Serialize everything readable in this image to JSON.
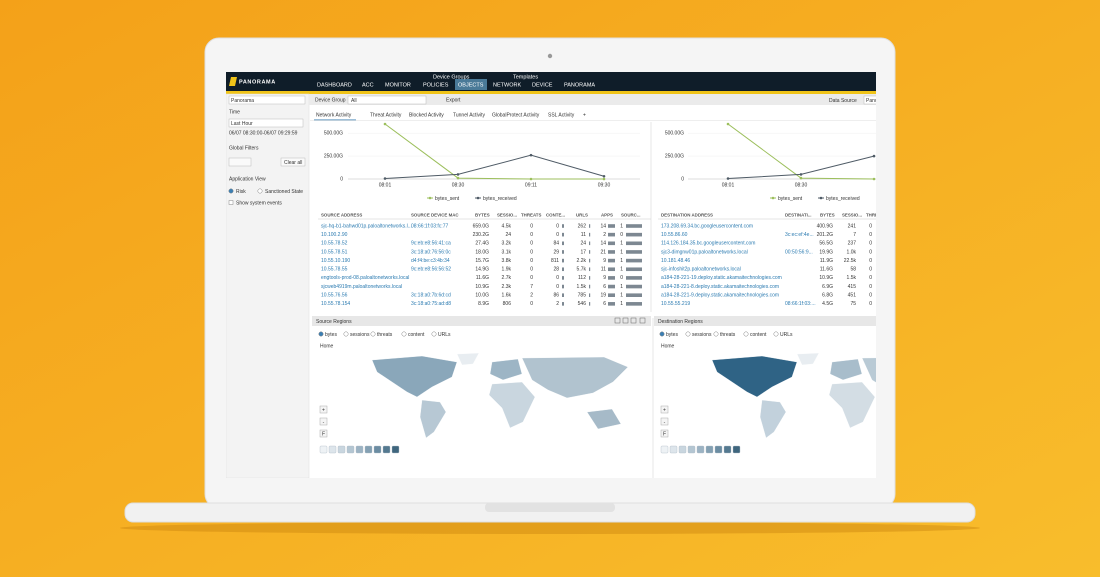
{
  "nav": {
    "logo": "PANORAMA",
    "group_labels": [
      "Device Groups",
      "Templates"
    ],
    "tabs": [
      "DASHBOARD",
      "ACC",
      "MONITOR",
      "POLICIES",
      "OBJECTS",
      "NETWORK",
      "DEVICE",
      "PANORAMA"
    ]
  },
  "sidebar": {
    "context": "Panorama",
    "time_label": "Time",
    "time_value": "Last Hour",
    "time_range": "06/07 08:30:00-06/07 09:29:59",
    "filters_label": "Global Filters",
    "clear": "Clear all",
    "app_view_label": "Application View",
    "options": [
      "Risk",
      "Sanctioned State"
    ],
    "checkbox": "Show system events"
  },
  "toolbar": {
    "device_group_label": "Device Group",
    "device_group": "All",
    "export": "Export",
    "data_source_label": "Data Source",
    "data_source": "Pano"
  },
  "tabs": [
    "Network Activity",
    "Threat Activity",
    "Blocked Activity",
    "Tunnel Activity",
    "GlobalProtect Activity",
    "SSL Activity",
    "+"
  ],
  "charts": [
    {
      "type": "line",
      "categories": [
        "08:01",
        "08:30",
        "09:11",
        "09:30"
      ],
      "series": [
        {
          "name": "bytes_sent",
          "color": "#9cbf5c",
          "values": [
            600,
            10,
            0,
            0
          ]
        },
        {
          "name": "bytes_received",
          "color": "#4f5b66",
          "values": [
            5,
            50,
            260,
            30
          ]
        }
      ],
      "ylim": [
        0,
        600
      ],
      "yticks": [
        0,
        {
          "value": 250,
          "label": "250.00G"
        },
        {
          "value": 500,
          "label": "500.00G"
        }
      ]
    },
    {
      "type": "line",
      "categories": [
        "08:01",
        "08:30",
        null
      ],
      "series": [
        {
          "name": "bytes_sent",
          "color": "#9cbf5c",
          "values": [
            600,
            10,
            0
          ]
        },
        {
          "name": "bytes_received",
          "color": "#4f5b66",
          "values": [
            5,
            50,
            250
          ]
        }
      ],
      "ylim": [
        0,
        600
      ],
      "yticks": [
        0,
        {
          "value": 250,
          "label": "250.00G"
        },
        {
          "value": 500,
          "label": "500.00G"
        }
      ]
    }
  ],
  "source_table": {
    "columns": [
      "SOURCE ADDRESS",
      "SOURCE DEVICE MAC",
      "BYTES",
      "SESSIO...",
      "THREATS",
      "CONTE...",
      "URLS",
      "APPS",
      "SOURC..."
    ],
    "rows": [
      [
        "sjc-hq-b1-bahwd01p.paloaltonetworks.l...",
        "08:66:1f:03:fc:77",
        "659.0G",
        "4.5k",
        "0",
        "0",
        "262",
        "14",
        "1"
      ],
      [
        "10.100.2.90",
        null,
        "230.2G",
        "24",
        "0",
        "0",
        "11",
        "2",
        "0"
      ],
      [
        "10.55.78.52",
        "9c:eb:e8:56:41:ca",
        "27.4G",
        "3.2k",
        "0",
        "84",
        "24",
        "14",
        "1"
      ],
      [
        "10.55.78.51",
        "3c:18:a0:76:56:0c",
        "18.0G",
        "3.1k",
        "0",
        "29",
        "17",
        "21",
        "1"
      ],
      [
        "10.55.10.190",
        "d4:f4:be:c3:4b:34",
        "15.7G",
        "3.8k",
        "0",
        "811",
        "2.2k",
        "9",
        "1"
      ],
      [
        "10.55.78.55",
        "9c:eb:e8:56:56:52",
        "14.9G",
        "1.9k",
        "0",
        "28",
        "5.7k",
        "11",
        "1"
      ],
      [
        "engtools-prod-08.paloaltonetworks.local",
        null,
        "11.6G",
        "2.7k",
        "0",
        "0",
        "112",
        "9",
        "0"
      ],
      [
        "sjcweb4919m.paloaltonetworks.local",
        null,
        "10.9G",
        "2.3k",
        "7",
        "0",
        "1.5k",
        "6",
        "1"
      ],
      [
        "10.55.76.56",
        "3c:18:a0:7b:6d:cd",
        "10.0G",
        "1.6k",
        "2",
        "86",
        "785",
        "19",
        "1"
      ],
      [
        "10.55.78.154",
        "3c:18:a0:75:ad:d8",
        "8.9G",
        "806",
        "0",
        "2",
        "546",
        "6",
        "1"
      ]
    ]
  },
  "destination_table": {
    "columns": [
      "DESTINATION ADDRESS",
      "DESTINATI...",
      "BYTES",
      "SESSIO...",
      "THRE..."
    ],
    "rows": [
      [
        "173.208.69.34.bc.googleusercontent.com",
        null,
        "400.9G",
        "241",
        "0"
      ],
      [
        "10.55.86.60",
        "3c:ec:ef:4e...",
        "201.2G",
        "7",
        "0"
      ],
      [
        "114.126.184.35.bc.googleusercontent.com",
        null,
        "56.5G",
        "237",
        "0"
      ],
      [
        "sjc3-dimgnw01p.paloaltonetworks.local",
        "00:50:56:9...",
        "19.9G",
        "1.0k",
        "0"
      ],
      [
        "10.181.48.46",
        null,
        "11.9G",
        "22.5k",
        "0"
      ],
      [
        "sjc-infoshit2p.paloaltonetworks.local",
        null,
        "11.6G",
        "58",
        "0"
      ],
      [
        "a184-28-221-19.deploy.static.akamaitechnologies.com",
        null,
        "10.9G",
        "1.5k",
        "0"
      ],
      [
        "a184-28-221-8.deploy.static.akamaitechnologies.com",
        null,
        "6.9G",
        "415",
        "0"
      ],
      [
        "a184-28-221-9.deploy.static.akamaitechnologies.com",
        null,
        "6.8G",
        "451",
        "0"
      ],
      [
        "10.55.55.219",
        "08:66:1f:03:...",
        "4.5G",
        "75",
        "0"
      ]
    ]
  },
  "regions": [
    {
      "title": "Source Regions",
      "options": [
        "bytes",
        "sessions",
        "threats",
        "content",
        "URLs"
      ],
      "home": "Home",
      "zoom": [
        "+",
        "-",
        "F"
      ]
    },
    {
      "title": "Destination Regions",
      "options": [
        "bytes",
        "sessions",
        "threats",
        "content",
        "URLs"
      ],
      "home": "Home",
      "zoom": [
        "+",
        "-",
        "F"
      ]
    }
  ]
}
